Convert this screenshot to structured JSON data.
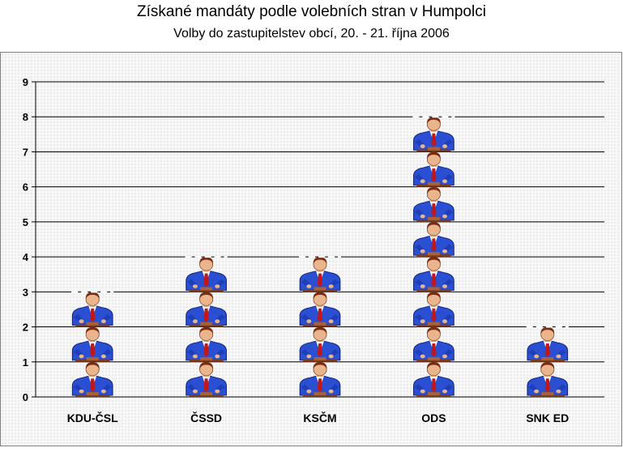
{
  "chart_data": {
    "type": "bar",
    "title": "Získané mandáty podle volebních stran v Humpolci",
    "subtitle": "Volby do zastupitelstev obcí, 20. - 21. října 2006",
    "categories": [
      "KDU-ČSL",
      "ČSSD",
      "KSČM",
      "ODS",
      "SNK ED"
    ],
    "values": [
      3,
      4,
      4,
      8,
      2
    ],
    "ylim": [
      0,
      9
    ],
    "yticks": [
      0,
      1,
      2,
      3,
      4,
      5,
      6,
      7,
      8,
      9
    ],
    "xlabel": "",
    "ylabel": "",
    "grid": true,
    "legend": "none",
    "bar_style": "pictogram-politician"
  }
}
